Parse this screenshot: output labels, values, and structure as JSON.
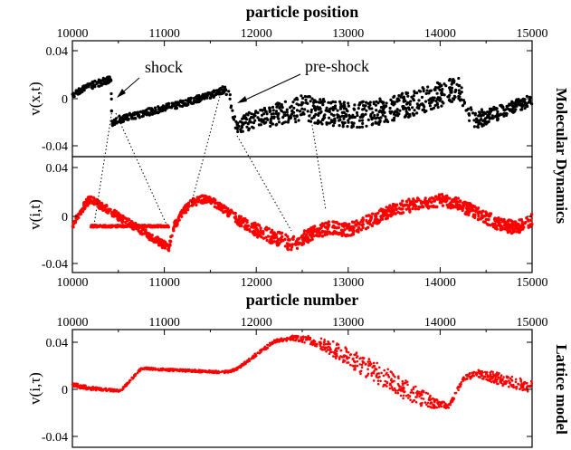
{
  "chart_data": [
    {
      "type": "scatter",
      "panel": "molecular-dynamics-position",
      "xlabel": "particle position",
      "ylabel": "v(x,t)",
      "xlim": [
        10000,
        15000
      ],
      "ylim": [
        -0.05,
        0.05
      ],
      "x_ticks": [
        "10000",
        "11000",
        "12000",
        "13000",
        "14000",
        "15000"
      ],
      "y_ticks": [
        "0.04",
        "0",
        "-0.04"
      ],
      "grid": false,
      "color": "#000000",
      "annotations": [
        "shock",
        "pre-shock"
      ],
      "series": [
        {
          "x": [
            10000,
            10100,
            10200,
            10300,
            10420,
            10430,
            10500,
            10700,
            10900,
            11100,
            11300,
            11500,
            11650,
            11700,
            11780,
            11900,
            12100,
            12300,
            12500,
            12700,
            12900,
            13100,
            13300,
            13500,
            13700,
            13900,
            14100,
            14200,
            14250,
            14350,
            14500,
            14700,
            14900,
            15000
          ],
          "y": [
            0.004,
            0.008,
            0.011,
            0.014,
            0.017,
            -0.022,
            -0.018,
            -0.014,
            -0.01,
            -0.006,
            -0.002,
            0.003,
            0.008,
            0.006,
            -0.025,
            -0.02,
            -0.016,
            -0.012,
            -0.008,
            -0.011,
            -0.013,
            -0.014,
            -0.012,
            -0.008,
            -0.004,
            0.001,
            0.006,
            0.009,
            0.0,
            -0.018,
            -0.016,
            -0.01,
            -0.004,
            -0.001
          ],
          "spread": [
            0.006,
            0.006,
            0.006,
            0.006,
            0.006,
            0.006,
            0.006,
            0.006,
            0.006,
            0.006,
            0.006,
            0.006,
            0.006,
            0.008,
            0.01,
            0.016,
            0.018,
            0.02,
            0.022,
            0.022,
            0.022,
            0.022,
            0.022,
            0.022,
            0.022,
            0.022,
            0.022,
            0.018,
            0.014,
            0.016,
            0.014,
            0.012,
            0.01,
            0.01
          ]
        }
      ]
    },
    {
      "type": "scatter",
      "panel": "molecular-dynamics-number",
      "ylabel": "v(i,t)",
      "xlim": [
        10000,
        15000
      ],
      "ylim": [
        -0.045,
        0.045
      ],
      "x_ticks": [
        "10000",
        "11000",
        "12000",
        "13000",
        "14000",
        "15000"
      ],
      "y_ticks": [
        "0.04",
        "0",
        "-0.04"
      ],
      "grid": false,
      "color": "#ff0000",
      "series": [
        {
          "x": [
            10000,
            10050,
            10100,
            10150,
            10200,
            11050,
            11100,
            11200,
            11300,
            11400,
            11500,
            11600,
            11800,
            12000,
            12200,
            12400,
            12600,
            12800,
            13000,
            13200,
            13400,
            13600,
            13800,
            14000,
            14200,
            14400,
            14600,
            14800,
            14900,
            15000
          ],
          "y": [
            -0.01,
            -0.002,
            0.004,
            0.009,
            0.012,
            -0.026,
            -0.01,
            0.002,
            0.009,
            0.012,
            0.011,
            0.007,
            -0.004,
            -0.012,
            -0.018,
            -0.023,
            -0.015,
            -0.01,
            -0.012,
            -0.006,
            0.001,
            0.006,
            0.009,
            0.011,
            0.008,
            0.001,
            -0.006,
            -0.01,
            -0.008,
            -0.004
          ],
          "spread": [
            0.006,
            0.006,
            0.006,
            0.006,
            0.006,
            0.006,
            0.006,
            0.006,
            0.006,
            0.006,
            0.006,
            0.006,
            0.008,
            0.01,
            0.012,
            0.012,
            0.01,
            0.01,
            0.01,
            0.01,
            0.01,
            0.01,
            0.01,
            0.01,
            0.01,
            0.01,
            0.01,
            0.01,
            0.01,
            0.01
          ]
        },
        {
          "x": [
            10200,
            11050
          ],
          "y": [
            -0.009,
            -0.009
          ],
          "spread": [
            0.0015,
            0.0015
          ]
        }
      ]
    },
    {
      "type": "scatter",
      "panel": "lattice-model",
      "xlabel": "particle number",
      "ylabel": "v(i,τ)",
      "xlim": [
        10000,
        15000
      ],
      "ylim": [
        -0.055,
        0.045
      ],
      "x_ticks": [
        "10000",
        "11000",
        "12000",
        "13000",
        "14000",
        "15000"
      ],
      "y_ticks": [
        "0.04",
        "0",
        "-0.04"
      ],
      "grid": false,
      "color": "#ff0000",
      "series": [
        {
          "x": [
            10000,
            10200,
            10500,
            10550,
            10750,
            11000,
            11300,
            11550,
            11700,
            11800,
            12000,
            12200,
            12400,
            12600,
            12800,
            13000,
            13200,
            13400,
            13600,
            13800,
            14000,
            14100,
            14250,
            14400,
            14600,
            14800,
            15000
          ],
          "y": [
            -0.002,
            -0.005,
            -0.007,
            -0.005,
            0.012,
            0.011,
            0.01,
            0.009,
            0.009,
            0.012,
            0.024,
            0.035,
            0.038,
            0.036,
            0.03,
            0.022,
            0.013,
            0.004,
            -0.005,
            -0.013,
            -0.019,
            -0.02,
            0.003,
            0.008,
            0.004,
            0.0,
            -0.004
          ],
          "spread": [
            0.004,
            0.003,
            0.002,
            0.002,
            0.002,
            0.002,
            0.002,
            0.002,
            0.002,
            0.002,
            0.003,
            0.003,
            0.004,
            0.007,
            0.012,
            0.016,
            0.018,
            0.018,
            0.017,
            0.014,
            0.008,
            0.003,
            0.004,
            0.006,
            0.01,
            0.01,
            0.01
          ]
        }
      ]
    }
  ],
  "figure": {
    "top_title": "particle position",
    "middle_title": "particle number",
    "side_label_md": "Molecular Dynamics",
    "side_label_lattice": "Lattice model",
    "annotation_shock": "shock",
    "annotation_preshock": "pre-shock"
  }
}
